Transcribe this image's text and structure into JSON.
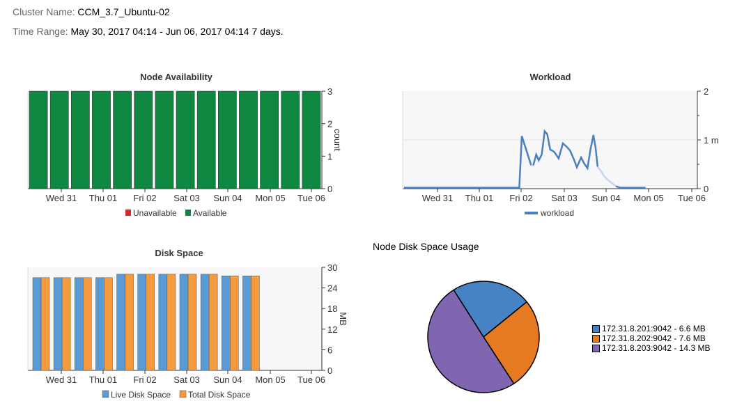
{
  "header": {
    "cluster_label": "Cluster Name:",
    "cluster_value": "CCM_3.7_Ubuntu-02",
    "range_label": "Time Range:",
    "range_value": "May 30, 2017 04:14 - Jun 06, 2017 04:14 7 days."
  },
  "colors": {
    "available": "#0e8740",
    "unavailable": "#e0222a",
    "workload": "#4a7fc1",
    "live_disk": "#5b9bd5",
    "total_disk": "#f59a3d",
    "pie_201": "#4682c4",
    "pie_202": "#e67a22",
    "pie_203": "#8066b0"
  },
  "chart_data": [
    {
      "id": "node_availability",
      "type": "bar",
      "title": "Node Availability",
      "ylabel": "count",
      "ylim": [
        0,
        3
      ],
      "yticks": [
        0,
        1,
        2,
        3
      ],
      "xticks": [
        "Wed 31",
        "Thu 01",
        "Fri 02",
        "Sat 03",
        "Sun 04",
        "Mon 05",
        "Tue 06"
      ],
      "legend": [
        "Unavailable",
        "Available"
      ],
      "series": [
        {
          "name": "Unavailable",
          "values": [
            0,
            0,
            0,
            0,
            0,
            0,
            0,
            0,
            0,
            0,
            0,
            0,
            0,
            0
          ]
        },
        {
          "name": "Available",
          "values": [
            3,
            3,
            3,
            3,
            3,
            3,
            3,
            3,
            3,
            3,
            3,
            3,
            3,
            3
          ]
        }
      ]
    },
    {
      "id": "workload",
      "type": "line",
      "title": "Workload",
      "ylim": [
        0,
        2
      ],
      "ytick_labels": [
        "0",
        "1 m",
        "2"
      ],
      "xticks": [
        "Wed 31",
        "Thu 01",
        "Fri 02",
        "Sat 03",
        "Sun 04",
        "Mon 05",
        "Tue 06"
      ],
      "legend": [
        "workload"
      ],
      "series": [
        {
          "name": "workload",
          "x": [
            0,
            0.5,
            1,
            1.5,
            2,
            2.5,
            2.65,
            2.72,
            2.78,
            3.0,
            3.05,
            3.12,
            3.18,
            3.25,
            3.32,
            3.38,
            3.45,
            3.5,
            3.55,
            3.65,
            3.75,
            3.85,
            3.92,
            4.0,
            4.08,
            4.18,
            4.25,
            4.33,
            4.4,
            4.47,
            4.52,
            4.57,
            4.63,
            4.68,
            4.72,
            4.8,
            4.9,
            5.0,
            5.1,
            5.2,
            5.3,
            5.4,
            5.5,
            5.6,
            5.7
          ],
          "y": [
            0.02,
            0.02,
            0.02,
            0.02,
            0.02,
            0.02,
            0.02,
            0.02,
            1.08,
            0.48,
            0.48,
            0.7,
            0.58,
            0.7,
            1.18,
            1.12,
            0.8,
            0.78,
            0.75,
            0.62,
            0.93,
            0.85,
            0.78,
            0.62,
            0.44,
            0.64,
            0.52,
            0.42,
            0.8,
            1.1,
            0.85,
            0.45,
            0.38,
            0.32,
            0.26,
            0.19,
            0.12,
            0.05,
            0.02,
            0.02,
            0.02,
            0.02,
            0.02,
            0.02,
            0.02
          ]
        }
      ]
    },
    {
      "id": "disk_space",
      "type": "bar",
      "title": "Disk Space",
      "ylabel": "MB",
      "ylim": [
        0,
        30
      ],
      "yticks": [
        0,
        6,
        12,
        18,
        24,
        30
      ],
      "xticks": [
        "Wed 31",
        "Thu 01",
        "Fri 02",
        "Sat 03",
        "Sun 04",
        "Mon 05",
        "Tue 06"
      ],
      "legend": [
        "Live Disk Space",
        "Total Disk Space"
      ],
      "series": [
        {
          "name": "Live Disk Space",
          "values": [
            27,
            27,
            27,
            27,
            28,
            28,
            28,
            28,
            28,
            27.5,
            27.5,
            0,
            0,
            0
          ]
        },
        {
          "name": "Total Disk Space",
          "values": [
            27,
            27,
            27,
            27,
            28,
            28,
            28,
            28,
            28,
            27.5,
            27.5,
            0,
            0,
            0
          ]
        }
      ]
    },
    {
      "id": "node_disk_usage",
      "type": "pie",
      "title": "Node Disk Space Usage",
      "labels": [
        "172.31.8.201:9042 - 6.6 MB",
        "172.31.8.202:9042 - 7.6 MB",
        "172.31.8.203:9042 - 14.3 MB"
      ],
      "values": [
        6.6,
        7.6,
        14.3
      ]
    }
  ]
}
